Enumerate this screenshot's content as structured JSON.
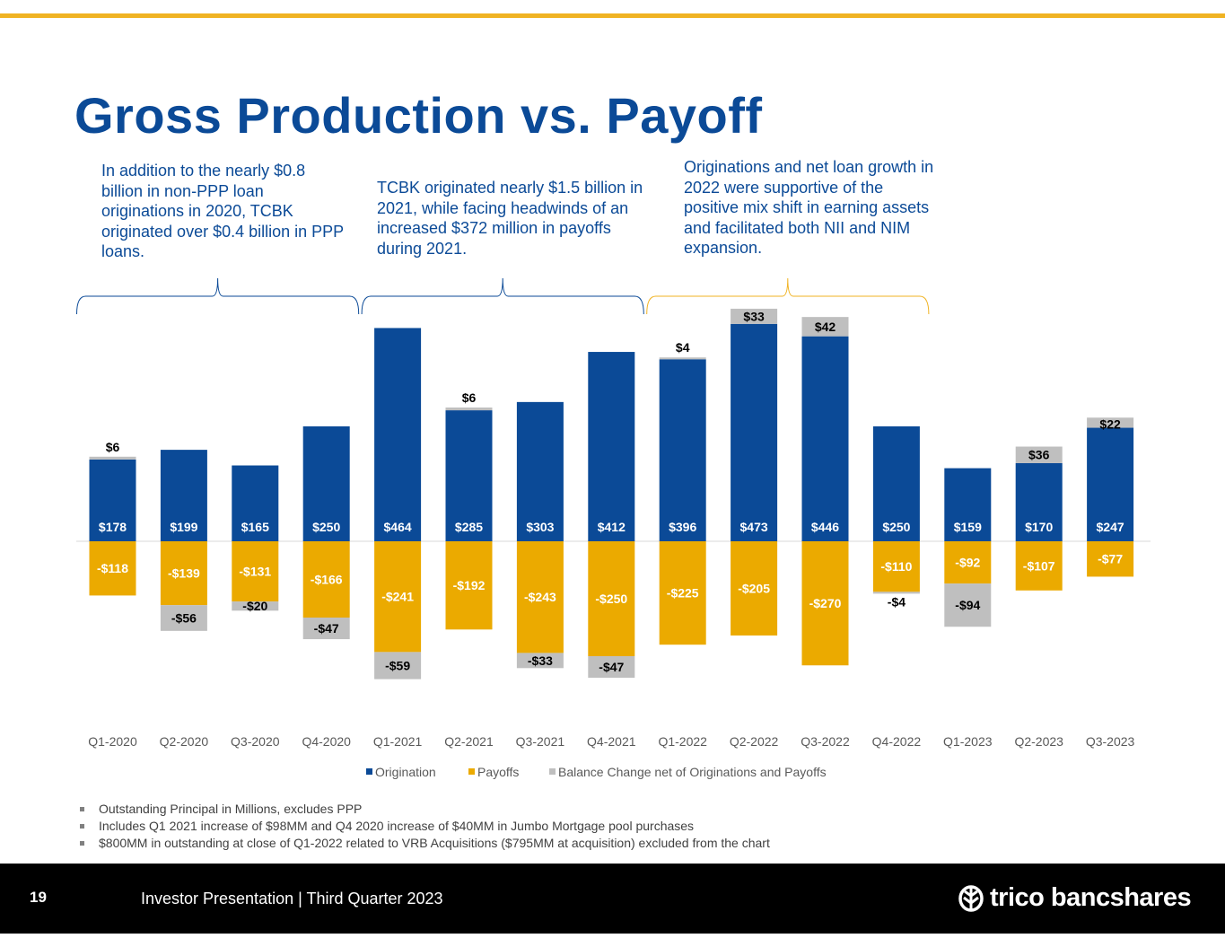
{
  "slide": {
    "title": "Gross Production vs. Payoff",
    "callouts": [
      "In addition to the nearly $0.8 billion in non-PPP loan originations in 2020, TCBK originated over $0.4 billion in PPP loans.",
      "TCBK originated nearly $1.5 billion in 2021, while facing headwinds of an increased $372 million in payoffs during 2021.",
      "Originations and net loan growth in 2022 were supportive of the positive mix shift in earning assets and facilitated both NII and NIM expansion."
    ],
    "footnotes": [
      "Outstanding Principal in Millions, excludes PPP",
      "Includes Q1 2021 increase of $98MM and Q4 2020 increase of $40MM in Jumbo Mortgage pool purchases",
      "$800MM in outstanding at close of Q1-2022 related to VRB Acquisitions ($795MM at acquisition) excluded from the chart"
    ]
  },
  "footer": {
    "page_number": "19",
    "text": "Investor Presentation | Third Quarter 2023",
    "brand": "trico bancshares"
  },
  "colors": {
    "accent_gold": "#F0B323",
    "brand_blue": "#0B4A97",
    "origination": "#0B4A97",
    "payoffs": "#EBAA00",
    "balance_change": "#BFBFBF",
    "footer_bg": "#000000"
  },
  "chart_data": {
    "type": "bar",
    "stacked": true,
    "categories": [
      "Q1-2020",
      "Q2-2020",
      "Q3-2020",
      "Q4-2020",
      "Q1-2021",
      "Q2-2021",
      "Q3-2021",
      "Q4-2021",
      "Q1-2022",
      "Q2-2022",
      "Q3-2022",
      "Q4-2022",
      "Q1-2023",
      "Q2-2023",
      "Q3-2023"
    ],
    "series": [
      {
        "name": "Origination",
        "values": [
          178,
          199,
          165,
          250,
          464,
          285,
          303,
          412,
          396,
          473,
          446,
          250,
          159,
          170,
          247
        ]
      },
      {
        "name": "Payoffs",
        "values": [
          -118,
          -139,
          -131,
          -166,
          -241,
          -192,
          -243,
          -250,
          -225,
          -205,
          -270,
          -110,
          -92,
          -107,
          -77
        ]
      },
      {
        "name": "Balance Change net of Originations and Payoffs",
        "values": [
          6,
          -56,
          -20,
          -47,
          -59,
          6,
          -33,
          -47,
          4,
          33,
          42,
          -4,
          -94,
          36,
          22
        ]
      }
    ],
    "data_labels": {
      "Origination": [
        "$178",
        "$199",
        "$165",
        "$250",
        "$464",
        "$285",
        "$303",
        "$412",
        "$396",
        "$473",
        "$446",
        "$250",
        "$159",
        "$170",
        "$247"
      ],
      "Payoffs": [
        "-$118",
        "-$139",
        "-$131",
        "-$166",
        "-$241",
        "-$192",
        "-$243",
        "-$250",
        "-$225",
        "-$205",
        "-$270",
        "-$110",
        "-$92",
        "-$107",
        "-$77"
      ],
      "Balance Change net of Originations and Payoffs": [
        "$6",
        "-$56",
        "-$20",
        "-$47",
        "-$59",
        "$6",
        "-$33",
        "-$47",
        "$4",
        "$33",
        "$42",
        "-$4",
        "-$94",
        "$36",
        "$22"
      ]
    },
    "legend_position": "bottom",
    "brackets": [
      {
        "from_category": 0,
        "to_category": 3,
        "color": "#0B4A97"
      },
      {
        "from_category": 4,
        "to_category": 7,
        "color": "#0B4A97"
      },
      {
        "from_category": 8,
        "to_category": 11,
        "color": "#F0B323"
      }
    ],
    "ylim": [
      -300,
      500
    ],
    "grid": false
  }
}
